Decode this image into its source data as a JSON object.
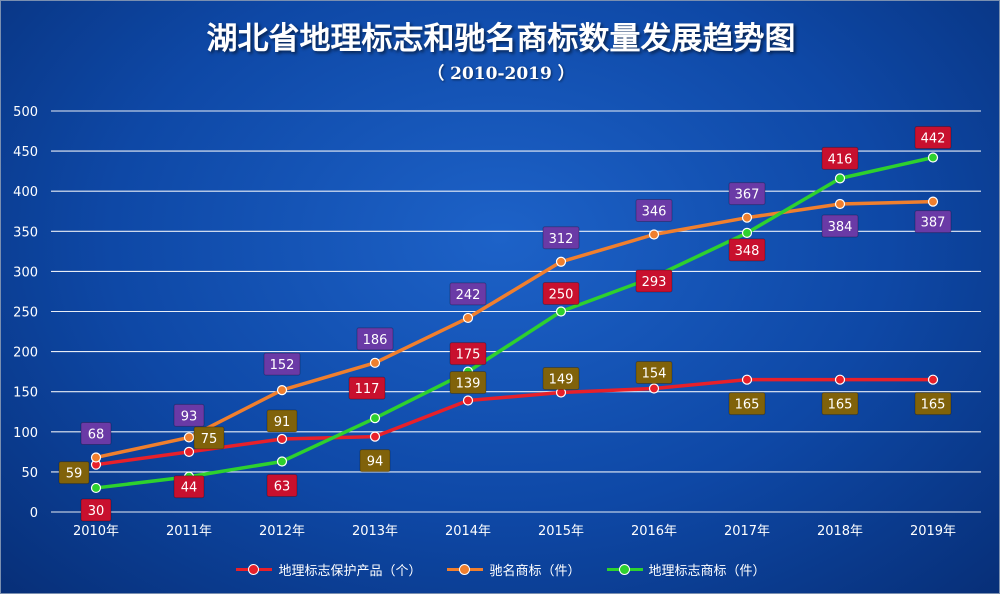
{
  "chart_data": {
    "type": "line",
    "title": "湖北省地理标志和驰名商标数量发展趋势图",
    "subtitle": "（ 2010-2019 ）",
    "x": [
      "2010年",
      "2011年",
      "2012年",
      "2013年",
      "2014年",
      "2015年",
      "2016年",
      "2017年",
      "2018年",
      "2019年"
    ],
    "ylim": [
      0,
      500
    ],
    "yticks": [
      0,
      50,
      100,
      150,
      200,
      250,
      300,
      350,
      400,
      450,
      500
    ],
    "grid": true,
    "legend_position": "bottom",
    "series": [
      {
        "name": "地理标志保护产品（个）",
        "color": "#e8202a",
        "plotted": [
          59,
          75,
          91,
          94,
          139,
          149,
          154,
          165,
          165,
          165
        ],
        "labels": [
          {
            "text": "59",
            "color": "#80620a"
          },
          {
            "text": "75",
            "color": "#80620a"
          },
          {
            "text": "91",
            "color": "#80620a"
          },
          {
            "text": "94",
            "color": "#80620a"
          },
          {
            "text": "139",
            "color": "#80620a"
          },
          {
            "text": "149",
            "color": "#80620a"
          },
          {
            "text": "154",
            "color": "#80620a"
          },
          {
            "text": "165",
            "color": "#80620a"
          },
          {
            "text": "165",
            "color": "#80620a"
          },
          {
            "text": "165",
            "color": "#80620a"
          }
        ]
      },
      {
        "name": "驰名商标（件）",
        "color": "#f07f2e",
        "plotted": [
          68,
          93,
          152,
          186,
          242,
          312,
          346,
          367,
          384,
          387
        ],
        "labels": [
          {
            "text": "68",
            "color": "#6a3aa6"
          },
          {
            "text": "93",
            "color": "#6a3aa6"
          },
          {
            "text": "152",
            "color": "#6a3aa6"
          },
          {
            "text": "186",
            "color": "#6a3aa6"
          },
          {
            "text": "242",
            "color": "#6a3aa6"
          },
          {
            "text": "312",
            "color": "#6a3aa6"
          },
          {
            "text": "346",
            "color": "#6a3aa6"
          },
          {
            "text": "367",
            "color": "#6a3aa6"
          },
          {
            "text": "384",
            "color": "#6a3aa6"
          },
          {
            "text": "387",
            "color": "#6a3aa6"
          }
        ]
      },
      {
        "name": "地理标志商标（件）",
        "color": "#2ed12e",
        "plotted": [
          30,
          44,
          63,
          117,
          175,
          250,
          293,
          348,
          416,
          442
        ],
        "labels": [
          {
            "text": "30",
            "color": "#c8102e"
          },
          {
            "text": "44",
            "color": "#c8102e"
          },
          {
            "text": "63",
            "color": "#c8102e"
          },
          {
            "text": "117",
            "color": "#c8102e"
          },
          {
            "text": "175",
            "color": "#c8102e"
          },
          {
            "text": "250",
            "color": "#c8102e"
          },
          {
            "text": "293",
            "color": "#c8102e"
          },
          {
            "text": "348",
            "color": "#c8102e"
          },
          {
            "text": "416",
            "color": "#c8102e"
          },
          {
            "text": "442",
            "color": "#c8102e"
          }
        ]
      }
    ]
  }
}
